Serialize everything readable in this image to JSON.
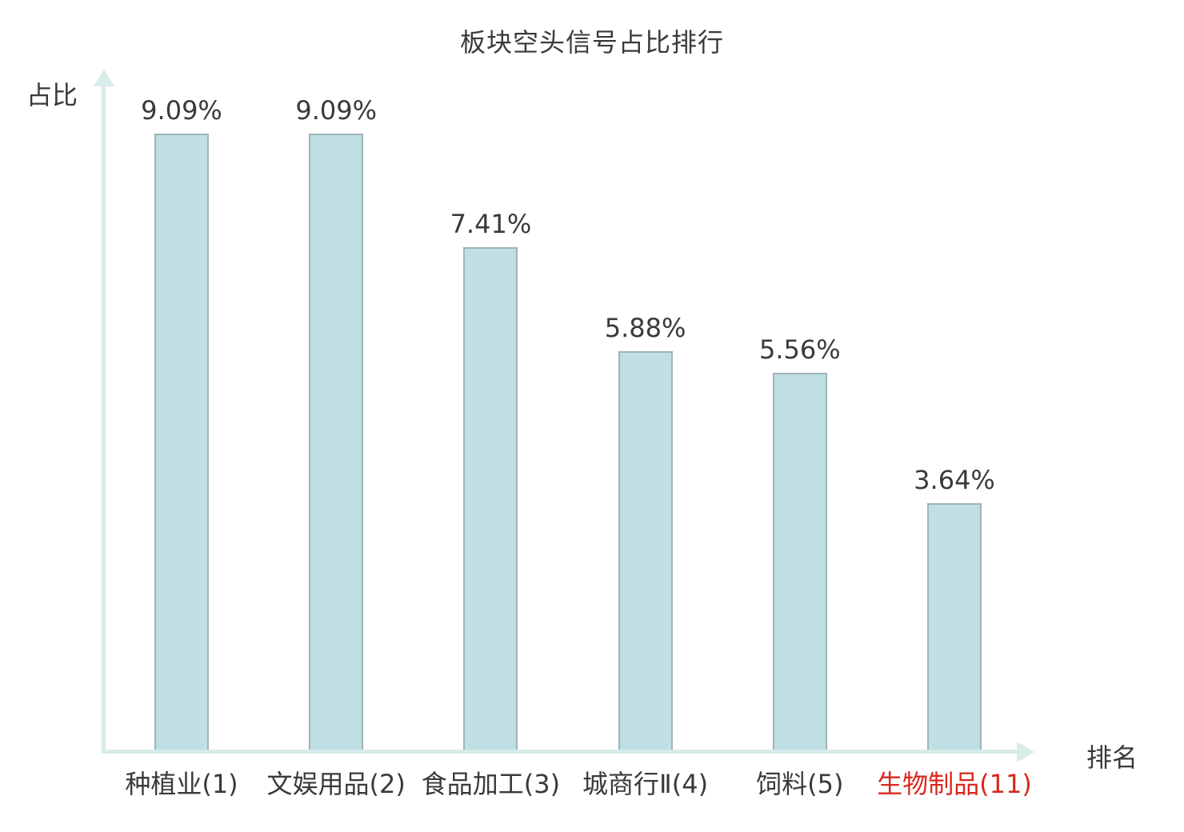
{
  "colors": {
    "bar_fill": "#c0dfe4",
    "bar_border": "#9fb3b6",
    "axis": "#d8ecea",
    "text": "#3a3a3a",
    "highlight": "#d9281e"
  },
  "chart_data": {
    "type": "bar",
    "title": "板块空头信号占比排行",
    "xlabel": "排名",
    "ylabel": "占比",
    "categories": [
      "种植业(1)",
      "文娱用品(2)",
      "食品加工(3)",
      "城商行Ⅱ(4)",
      "饲料(5)",
      "生物制品(11)"
    ],
    "values": [
      9.09,
      9.09,
      7.41,
      5.88,
      5.56,
      3.64
    ],
    "value_labels": [
      "9.09%",
      "9.09%",
      "7.41%",
      "5.88%",
      "5.56%",
      "3.64%"
    ],
    "highlighted_category_index": 5,
    "ylim": [
      0,
      10
    ],
    "grid": false,
    "legend": null,
    "axis_ticks": "none"
  }
}
